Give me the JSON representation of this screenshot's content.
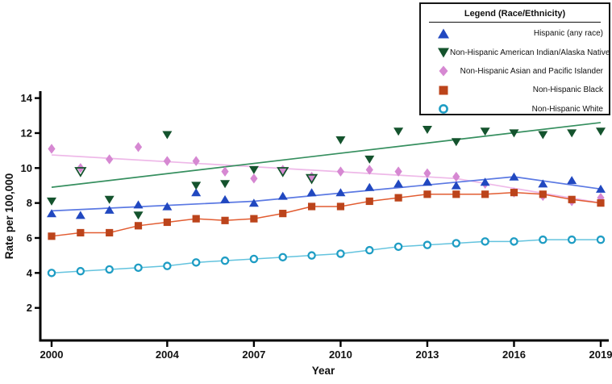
{
  "legend": {
    "title": "Legend (Race/Ethnicity)"
  },
  "chart_data": {
    "type": "scatter",
    "title": "",
    "xlabel": "Year",
    "ylabel": "Rate per 100,000",
    "x_ticks": [
      2000,
      2004,
      2007,
      2010,
      2013,
      2016,
      2019
    ],
    "y_ticks": [
      2,
      4,
      6,
      8,
      10,
      12,
      14
    ],
    "xlim": [
      1999.6,
      2019.4
    ],
    "ylim": [
      0.3,
      14.4
    ],
    "grid": false,
    "legend_position": "top-right",
    "years": [
      2000,
      2001,
      2002,
      2003,
      2004,
      2005,
      2006,
      2007,
      2008,
      2009,
      2010,
      2011,
      2012,
      2013,
      2014,
      2015,
      2016,
      2017,
      2018,
      2019
    ],
    "series": [
      {
        "key": "hispanic",
        "name": "Hispanic (any race)",
        "marker": "triangle-up",
        "color": "#2148c0",
        "line_color": "#5b79e3",
        "values": [
          7.4,
          7.3,
          7.6,
          7.9,
          7.8,
          8.6,
          8.2,
          8.0,
          8.4,
          8.6,
          8.6,
          8.9,
          9.1,
          9.2,
          9.0,
          9.2,
          9.5,
          9.1,
          9.3,
          8.8
        ],
        "fit_line": [
          [
            2000,
            7.55
          ],
          [
            2007,
            8.1
          ],
          [
            2016,
            9.5
          ],
          [
            2019,
            8.8
          ]
        ]
      },
      {
        "key": "aian",
        "name": "Non-Hispanic American Indian/Alaska Native",
        "marker": "triangle-down",
        "color": "#14532d",
        "line_color": "#368f5f",
        "values": [
          8.1,
          9.8,
          8.2,
          7.3,
          11.9,
          9.0,
          9.1,
          9.9,
          9.8,
          9.4,
          11.6,
          10.5,
          12.1,
          12.2,
          11.5,
          12.1,
          12.0,
          11.9,
          12.0,
          12.1
        ],
        "open_years": [
          2001,
          2008,
          2009
        ],
        "fit_line": [
          [
            2000,
            8.9
          ],
          [
            2019,
            12.6
          ]
        ]
      },
      {
        "key": "asian_pi",
        "name": "Non-Hispanic Asian and Pacific Islander",
        "marker": "diamond",
        "color": "#d688d2",
        "line_color": "#eeb8e8",
        "values": [
          11.1,
          10.0,
          10.5,
          11.2,
          10.4,
          10.4,
          9.8,
          9.4,
          9.9,
          9.5,
          9.8,
          9.9,
          9.8,
          9.7,
          9.5,
          9.1,
          8.6,
          8.4,
          8.1,
          8.3
        ],
        "fit_line": [
          [
            2000,
            10.75
          ],
          [
            2014,
            9.4
          ],
          [
            2019,
            8.0
          ]
        ]
      },
      {
        "key": "black",
        "name": "Non-Hispanic Black",
        "marker": "square",
        "color": "#bc441b",
        "line_color": "#e25c31",
        "values": [
          6.1,
          6.3,
          6.3,
          6.7,
          6.9,
          7.1,
          7.0,
          7.1,
          7.4,
          7.8,
          7.8,
          8.1,
          8.3,
          8.5,
          8.5,
          8.5,
          8.6,
          8.5,
          8.2,
          8.0
        ],
        "connect": true
      },
      {
        "key": "white",
        "name": "Non-Hispanic White",
        "marker": "circle-open",
        "color": "#1f9dc4",
        "line_color": "#63c3de",
        "values": [
          4.0,
          4.1,
          4.2,
          4.3,
          4.4,
          4.6,
          4.7,
          4.8,
          4.9,
          5.0,
          5.1,
          5.3,
          5.5,
          5.6,
          5.7,
          5.8,
          5.8,
          5.9,
          5.9,
          5.9
        ],
        "connect": true
      }
    ]
  }
}
